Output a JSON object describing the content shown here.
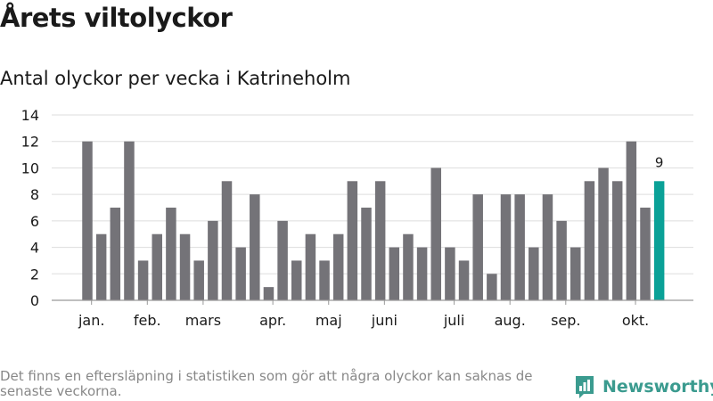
{
  "header": {
    "title": "Årets viltolyckor",
    "subtitle": "Antal olyckor per vecka i Katrineholm"
  },
  "footer": {
    "note": "Det finns en eftersläpning i statistiken som gör att några olyckor kan saknas de senaste veckorna.",
    "brand": "Newsworthy"
  },
  "colors": {
    "bar": "#747378",
    "highlight": "#0aa197",
    "grid": "#dddddd",
    "axis": "#999999",
    "text": "#1a1a1a",
    "brand": "#3b9b8f"
  },
  "chart_data": {
    "type": "bar",
    "title": "Antal olyckor per vecka i Katrineholm",
    "xlabel": "",
    "ylabel": "",
    "ylim": [
      0,
      14
    ],
    "yticks": [
      "0",
      "2",
      "4",
      "6",
      "8",
      "10",
      "12",
      "14"
    ],
    "grid": true,
    "values": [
      12,
      5,
      7,
      12,
      3,
      5,
      7,
      5,
      3,
      6,
      9,
      4,
      8,
      1,
      6,
      3,
      5,
      3,
      5,
      9,
      7,
      9,
      4,
      5,
      4,
      10,
      4,
      3,
      8,
      2,
      8,
      8,
      4,
      8,
      6,
      4,
      9,
      10,
      9,
      12,
      7,
      9
    ],
    "highlight_index": 41,
    "highlight_label": "9",
    "month_labels": [
      {
        "label": "jan.",
        "index": 0.3
      },
      {
        "label": "feb.",
        "index": 4.3
      },
      {
        "label": "mars",
        "index": 8.3
      },
      {
        "label": "apr.",
        "index": 13.3
      },
      {
        "label": "maj",
        "index": 17.3
      },
      {
        "label": "juni",
        "index": 21.3
      },
      {
        "label": "juli",
        "index": 26.3
      },
      {
        "label": "aug.",
        "index": 30.3
      },
      {
        "label": "sep.",
        "index": 34.3
      },
      {
        "label": "okt.",
        "index": 39.3
      }
    ]
  }
}
